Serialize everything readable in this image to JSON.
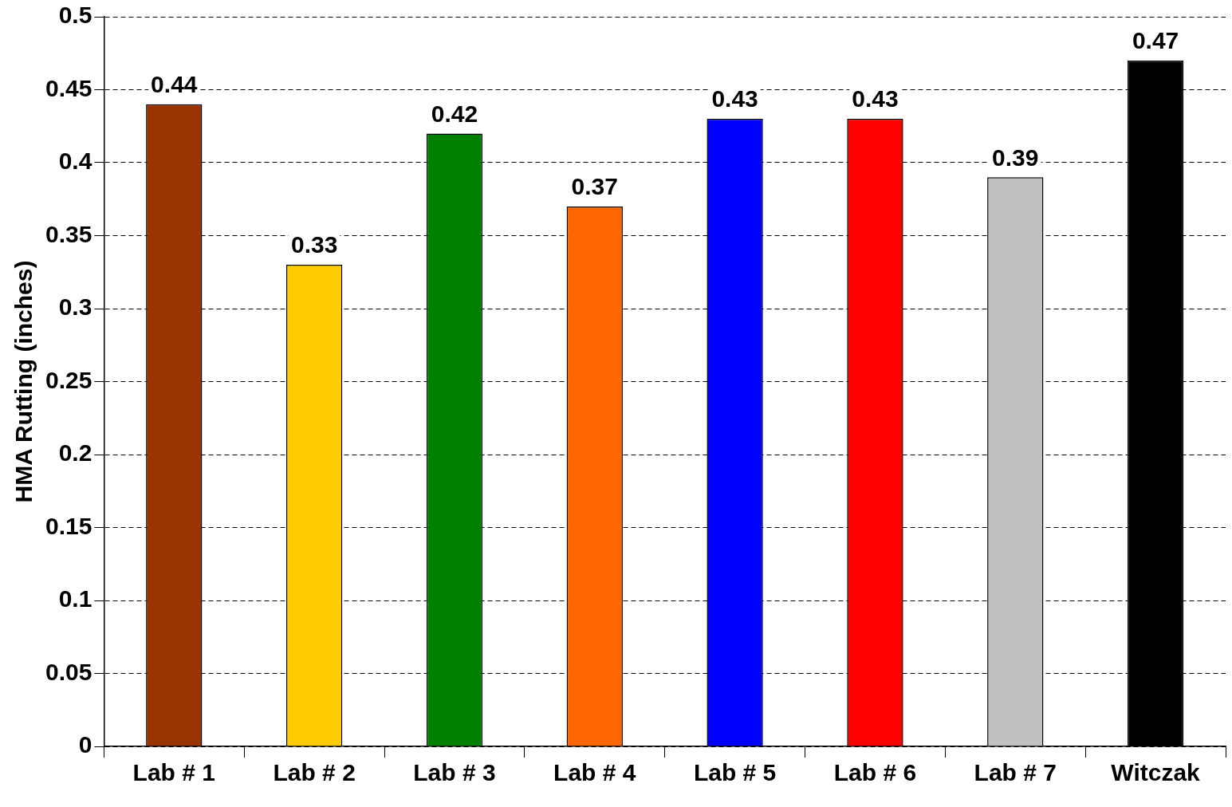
{
  "chart_data": {
    "type": "bar",
    "ylabel": "HMA Rutting (inches)",
    "categories": [
      "Lab # 1",
      "Lab # 2",
      "Lab # 3",
      "Lab # 4",
      "Lab # 5",
      "Lab # 6",
      "Lab # 7",
      "Witczak"
    ],
    "values": [
      0.44,
      0.33,
      0.42,
      0.37,
      0.43,
      0.43,
      0.39,
      0.47
    ],
    "colors": [
      "#993300",
      "#ffcc00",
      "#008000",
      "#ff6600",
      "#0000ff",
      "#ff0000",
      "#c0c0c0",
      "#000000"
    ],
    "ylim": [
      0,
      0.5
    ],
    "yticks": [
      0,
      0.05,
      0.1,
      0.15,
      0.2,
      0.25,
      0.3,
      0.35,
      0.4,
      0.45,
      0.5
    ],
    "grid": "y",
    "data_labels": true,
    "legend": false
  }
}
